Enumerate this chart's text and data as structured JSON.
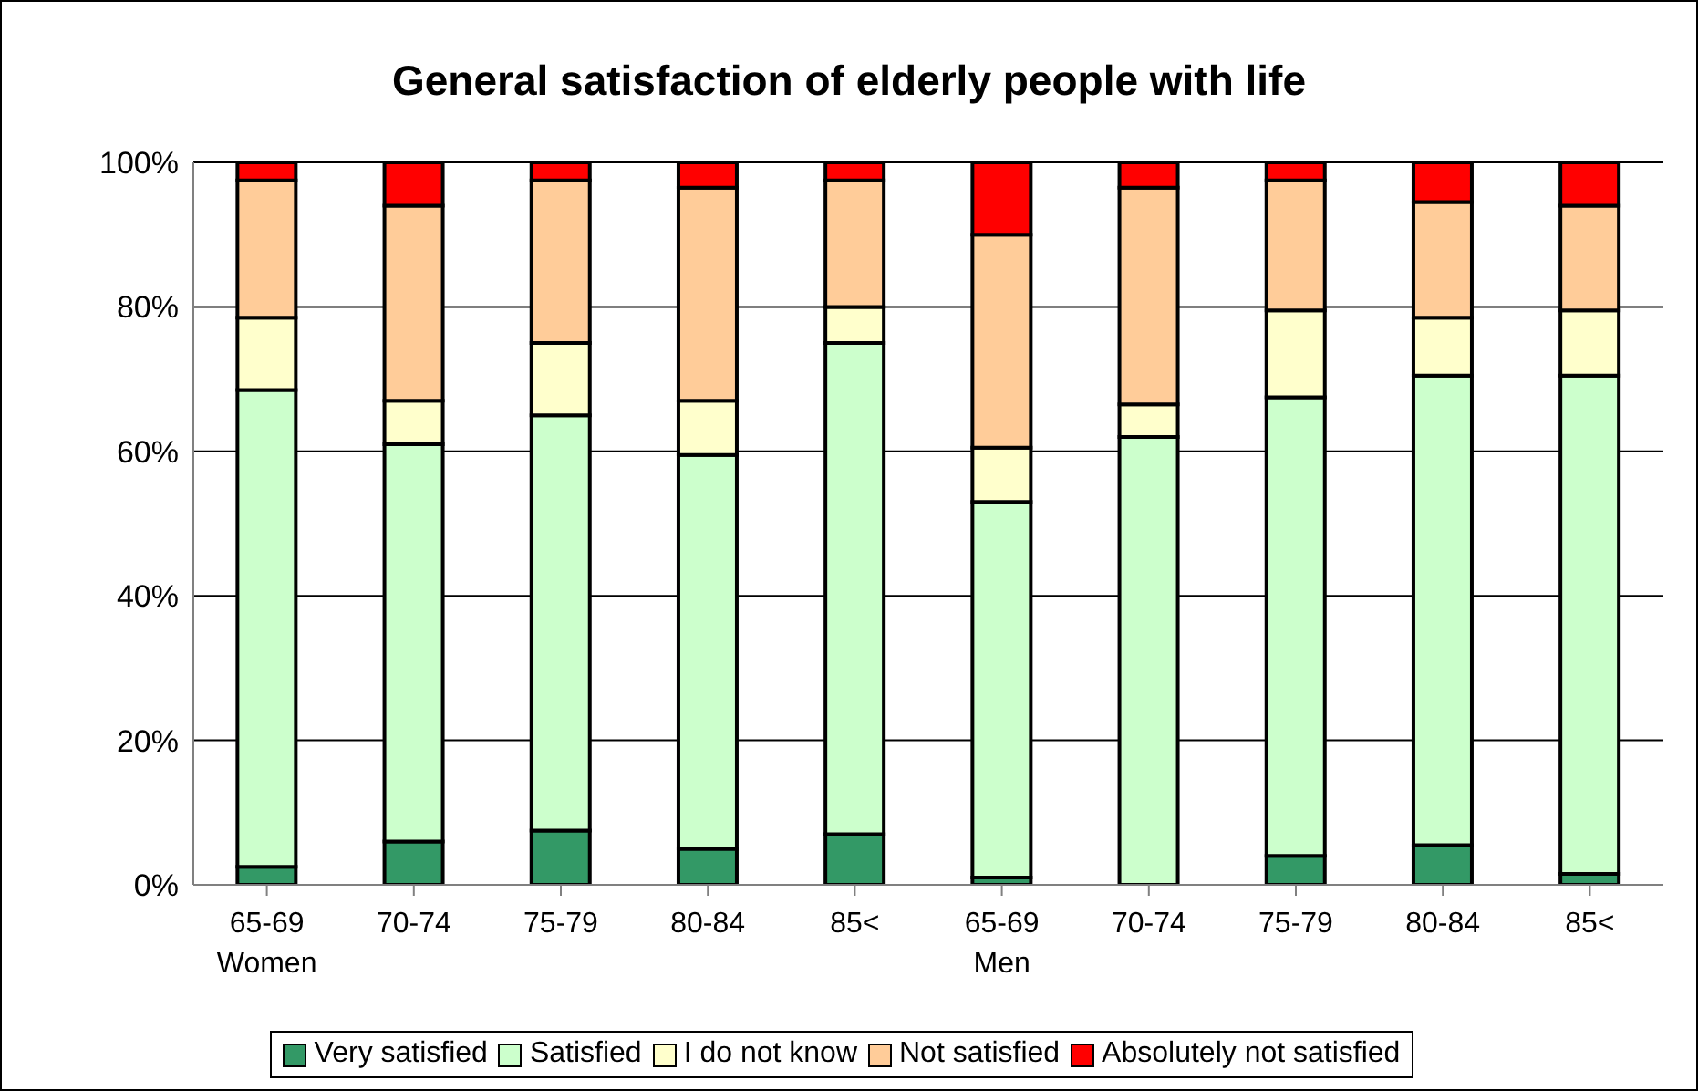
{
  "chart_data": {
    "type": "bar",
    "title": "General satisfaction of elderly people with life",
    "categories": [
      "65-69\nWomen",
      "70-74",
      "75-79",
      "80-84",
      "85<",
      "65-69\nMen",
      "70-74",
      "75-79",
      "80-84",
      "85<"
    ],
    "stacked": true,
    "series": [
      {
        "name": "Very satisfied",
        "color": "#339966",
        "values": [
          2.5,
          6,
          7.5,
          5,
          7,
          1,
          0,
          4,
          5.5,
          1.5
        ]
      },
      {
        "name": "Satisfied",
        "color": "#ccffcc",
        "values": [
          66,
          55,
          57.5,
          54.5,
          68,
          52,
          62,
          63.5,
          65,
          69
        ]
      },
      {
        "name": "I do not know",
        "color": "#ffffcc",
        "values": [
          10,
          6,
          10,
          7.5,
          5,
          7.5,
          4.5,
          12,
          8,
          9
        ]
      },
      {
        "name": "Not satisfied",
        "color": "#ffcc99",
        "values": [
          19,
          27,
          22.5,
          29.5,
          17.5,
          29.5,
          30,
          18,
          16,
          14.5
        ]
      },
      {
        "name": "Absolutely not satisfied",
        "color": "#ff0000",
        "values": [
          2.5,
          6,
          2.5,
          3.5,
          2.5,
          10,
          3.5,
          2.5,
          5.5,
          6
        ]
      }
    ],
    "ylim": [
      0,
      100
    ],
    "yticks": [
      {
        "value": 0,
        "label": "0%"
      },
      {
        "value": 20,
        "label": "20%"
      },
      {
        "value": 40,
        "label": "40%"
      },
      {
        "value": 60,
        "label": "60%"
      },
      {
        "value": 80,
        "label": "80%"
      },
      {
        "value": 100,
        "label": "100%"
      }
    ],
    "grid": "y",
    "legend": "bottom"
  }
}
